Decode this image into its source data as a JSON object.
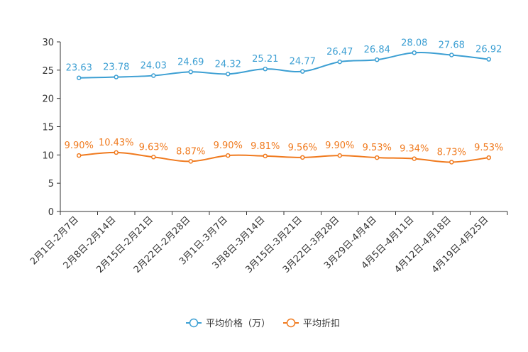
{
  "chart_data": {
    "type": "line",
    "categories": [
      "2月1日-2月7日",
      "2月8日-2月14日",
      "2月15日-2月21日",
      "2月22日-2月28日",
      "3月1日-3月7日",
      "3月8日-3月14日",
      "3月15日-3月21日",
      "3月22日-3月28日",
      "3月29日-4月4日",
      "4月5日-4月11日",
      "4月12日-4月18日",
      "4月19日-4月25日"
    ],
    "series": [
      {
        "name": "平均价格（万）",
        "color": "#3c9fd3",
        "values": [
          23.63,
          23.78,
          24.03,
          24.69,
          24.32,
          25.21,
          24.77,
          26.47,
          26.84,
          28.08,
          27.68,
          26.92
        ],
        "labels": [
          "23.63",
          "23.78",
          "24.03",
          "24.69",
          "24.32",
          "25.21",
          "24.77",
          "26.47",
          "26.84",
          "28.08",
          "27.68",
          "26.92"
        ]
      },
      {
        "name": "平均折扣",
        "color": "#f07a1e",
        "values": [
          9.9,
          10.43,
          9.63,
          8.87,
          9.9,
          9.81,
          9.56,
          9.9,
          9.53,
          9.34,
          8.73,
          9.53
        ],
        "labels": [
          "9.90%",
          "10.43%",
          "9.63%",
          "8.87%",
          "9.90%",
          "9.81%",
          "9.56%",
          "9.90%",
          "9.53%",
          "9.34%",
          "8.73%",
          "9.53%"
        ]
      }
    ],
    "yticks": [
      "0",
      "5",
      "10",
      "15",
      "20",
      "25",
      "30"
    ],
    "ylim": [
      0,
      30
    ],
    "title": "",
    "xlabel": "",
    "ylabel": "",
    "legend": "bottom-center",
    "grid": false
  }
}
